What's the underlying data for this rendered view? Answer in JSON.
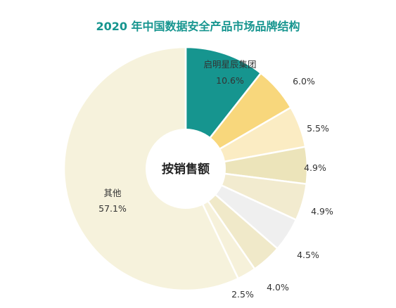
{
  "chart_data": {
    "type": "pie",
    "title": "2020 年中国数据安全产品市场品牌结构",
    "center_label": "按销售额",
    "slices": [
      {
        "label": "启明星辰集团",
        "value": 10.6,
        "value_label": "10.6%",
        "color": "#16958f"
      },
      {
        "label": "",
        "value": 6.0,
        "value_label": "6.0%",
        "color": "#f8d77c"
      },
      {
        "label": "",
        "value": 5.5,
        "value_label": "5.5%",
        "color": "#fbecc3"
      },
      {
        "label": "",
        "value": 4.9,
        "value_label": "4.9%",
        "color": "#ece4ba"
      },
      {
        "label": "",
        "value": 4.9,
        "value_label": "4.9%",
        "color": "#f2ebcf"
      },
      {
        "label": "",
        "value": 4.5,
        "value_label": "4.5%",
        "color": "#efefef"
      },
      {
        "label": "",
        "value": 4.0,
        "value_label": "4.0%",
        "color": "#f0e9c9"
      },
      {
        "label": "",
        "value": 2.5,
        "value_label": "2.5%",
        "color": "#f6f1da"
      },
      {
        "label": "其他",
        "value": 57.1,
        "value_label": "57.1%",
        "color": "#f6f2dc"
      }
    ]
  }
}
